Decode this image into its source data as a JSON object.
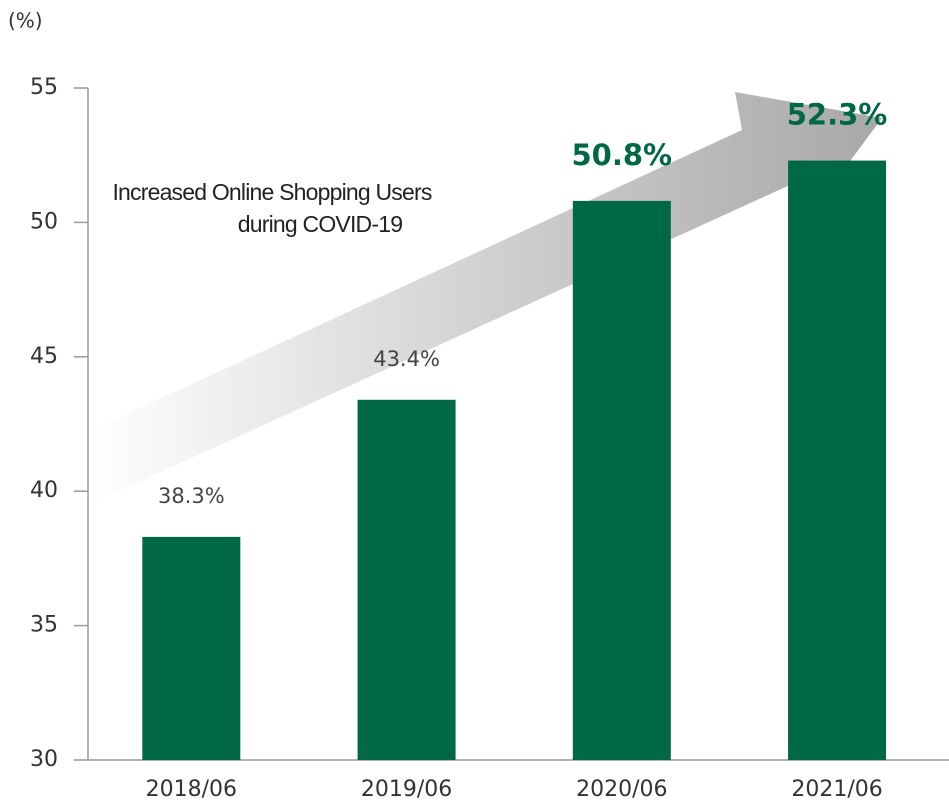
{
  "chart_data": {
    "type": "bar",
    "y_unit": "(%)",
    "annotation": [
      "Increased Online Shopping Users",
      "during COVID-19"
    ],
    "categories": [
      "2018/06",
      "2019/06",
      "2020/06",
      "2021/06"
    ],
    "values": [
      38.3,
      43.4,
      50.8,
      52.3
    ],
    "value_labels": [
      "38.3%",
      "43.4%",
      "50.8%",
      "52.3%"
    ],
    "color": "#006845",
    "ylim": [
      30,
      55
    ],
    "yticks": [
      30,
      35,
      40,
      45,
      50,
      55
    ],
    "grid": false
  }
}
